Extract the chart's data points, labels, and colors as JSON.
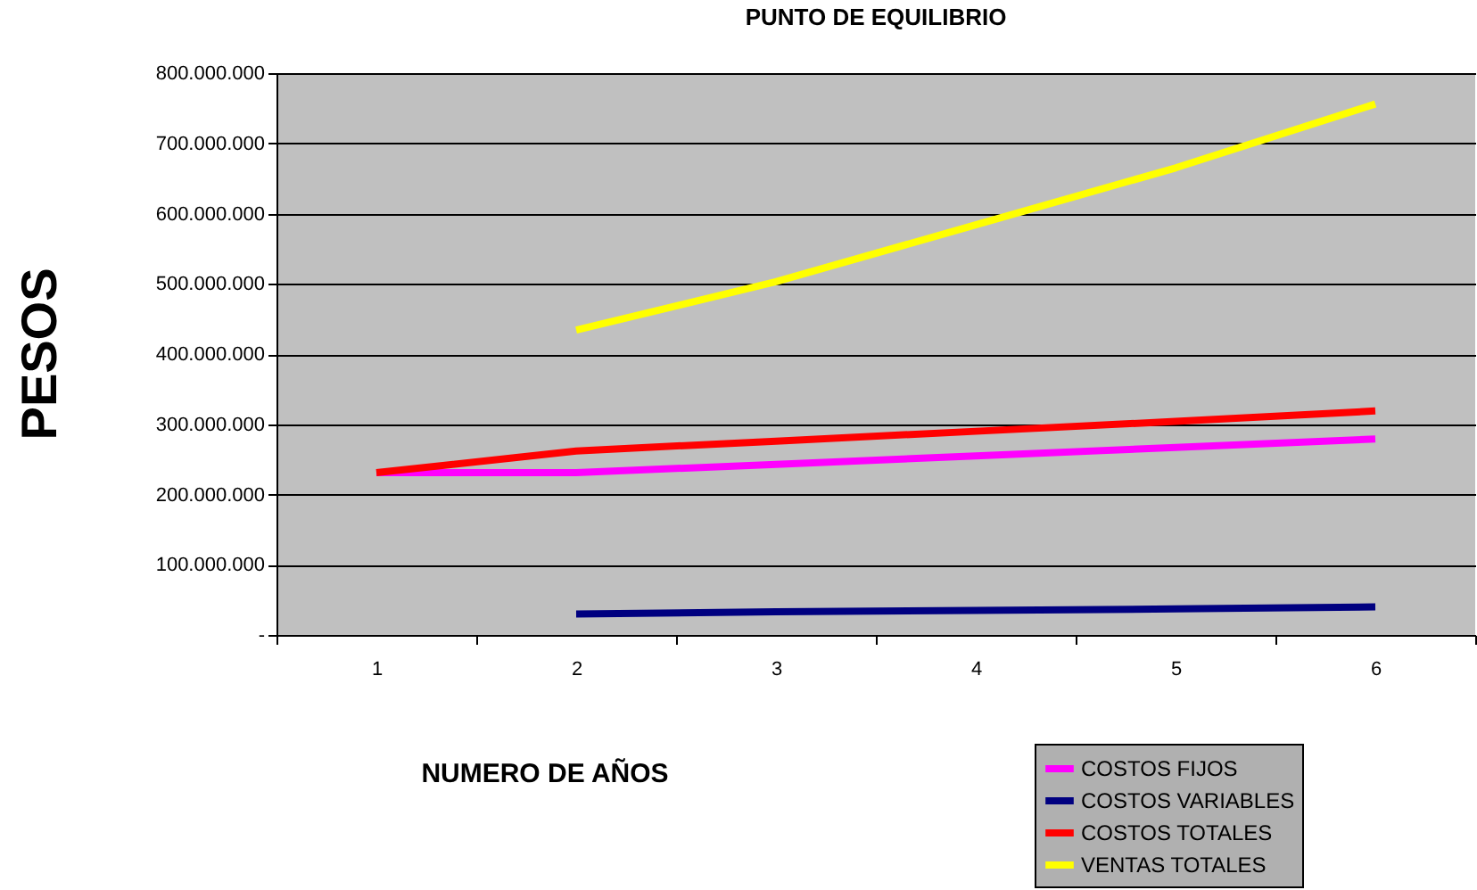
{
  "chart_data": {
    "type": "line",
    "title": "PUNTO DE EQUILIBRIO",
    "xlabel": "NUMERO DE AÑOS",
    "ylabel": "PESOS",
    "categories": [
      "1",
      "2",
      "3",
      "4",
      "5",
      "6"
    ],
    "series": [
      {
        "name": "COSTOS FIJOS",
        "color": "#ff00ff",
        "values": [
          231000000,
          231000000,
          243000000,
          255000000,
          267000000,
          279000000
        ]
      },
      {
        "name": "COSTOS VARIABLES",
        "color": "#000080",
        "values": [
          null,
          30000000,
          33000000,
          35000000,
          37000000,
          40000000
        ]
      },
      {
        "name": "COSTOS TOTALES",
        "color": "#ff0000",
        "values": [
          231000000,
          262000000,
          276000000,
          290000000,
          304000000,
          319000000
        ]
      },
      {
        "name": "VENTAS TOTALES",
        "color": "#ffff00",
        "values": [
          null,
          434000000,
          503000000,
          584000000,
          665000000,
          756000000
        ]
      }
    ],
    "ylim": [
      0,
      800000000
    ],
    "yticks": [
      {
        "value": 0,
        "label": "-"
      },
      {
        "value": 100000000,
        "label": "100.000.000"
      },
      {
        "value": 200000000,
        "label": "200.000.000"
      },
      {
        "value": 300000000,
        "label": "300.000.000"
      },
      {
        "value": 400000000,
        "label": "400.000.000"
      },
      {
        "value": 500000000,
        "label": "500.000.000"
      },
      {
        "value": 600000000,
        "label": "600.000.000"
      },
      {
        "value": 700000000,
        "label": "700.000.000"
      },
      {
        "value": 800000000,
        "label": "800.000.000"
      }
    ],
    "grid": "y",
    "legend": "bottom right",
    "marker": "none",
    "line_style": "solid"
  }
}
